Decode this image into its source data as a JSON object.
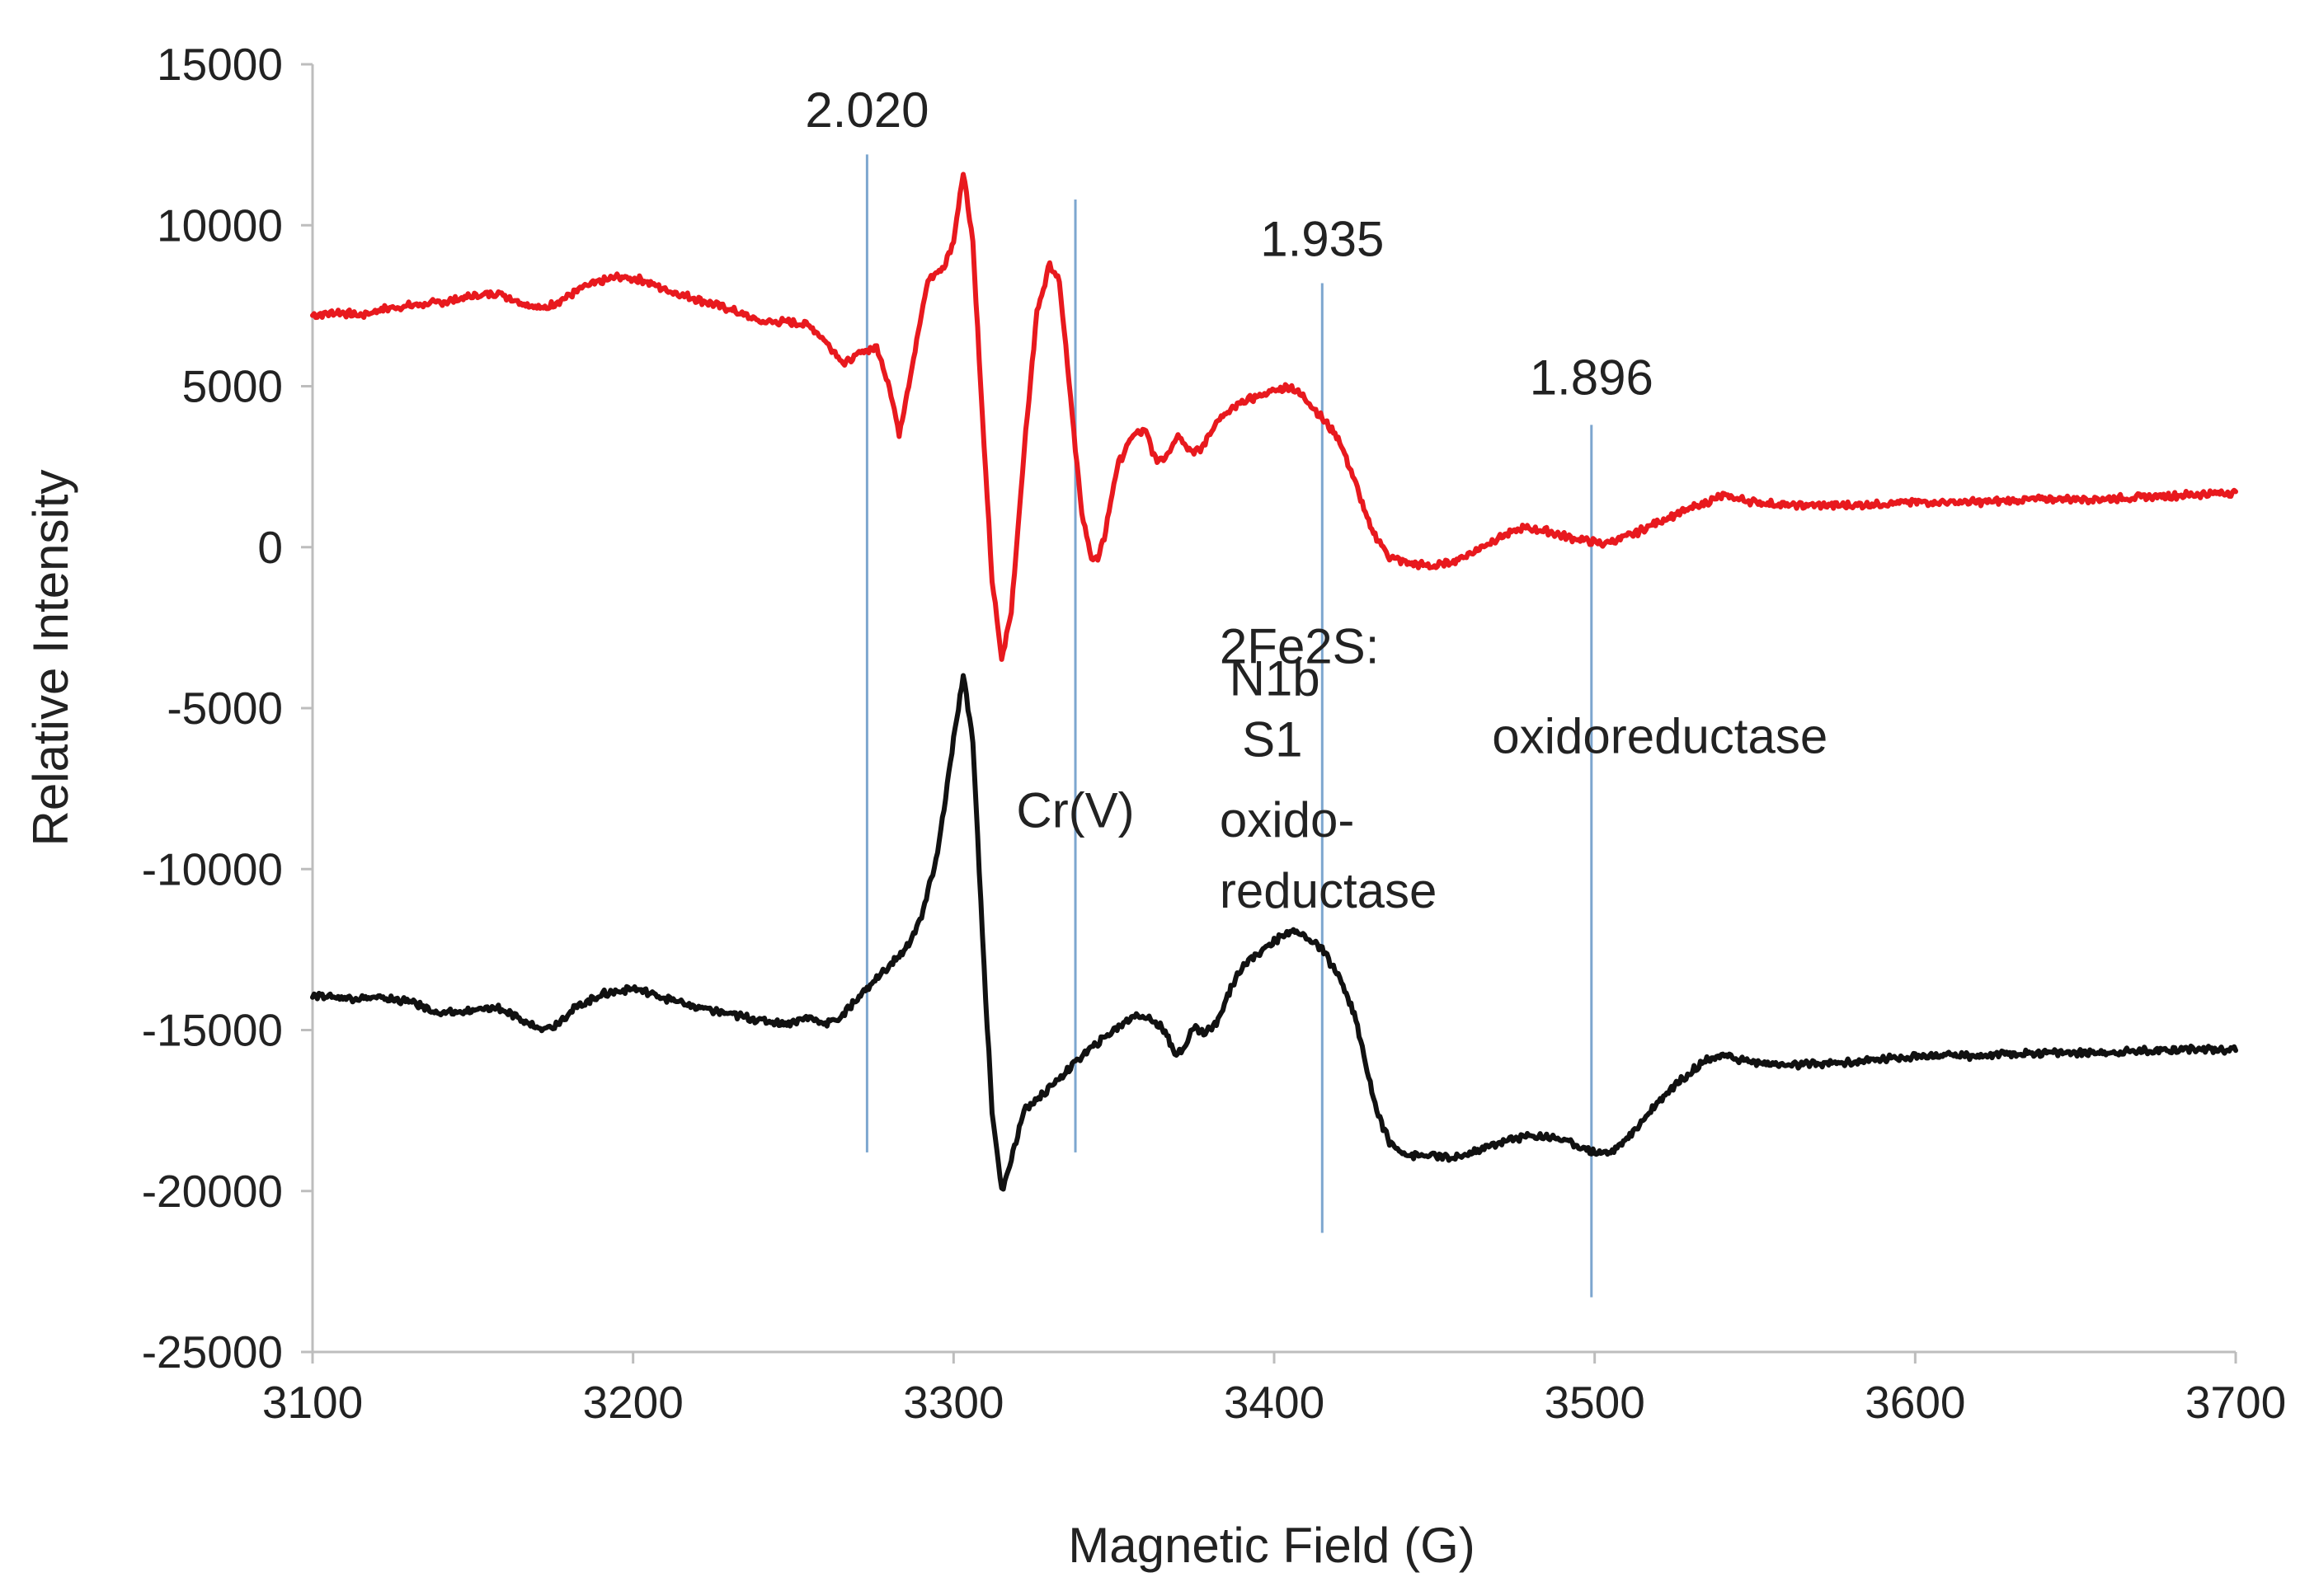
{
  "chart_data": {
    "type": "line",
    "title": "",
    "xlabel": "Magnetic Field (G)",
    "ylabel": "Relative Intensity",
    "xlim": [
      3100,
      3700
    ],
    "ylim": [
      -25000,
      15000
    ],
    "x_ticks": [
      3100,
      3200,
      3300,
      3400,
      3500,
      3600,
      3700
    ],
    "y_ticks": [
      15000,
      10000,
      5000,
      0,
      -5000,
      -10000,
      -15000,
      -20000,
      -25000
    ],
    "grid": false,
    "series": [
      {
        "name": "upper spectrum",
        "color": "#e8191e",
        "x": [
          3100,
          3108,
          3115,
          3122,
          3130,
          3140,
          3150,
          3158,
          3165,
          3172,
          3178,
          3185,
          3195,
          3203,
          3210,
          3220,
          3230,
          3240,
          3248,
          3255,
          3260,
          3266,
          3272,
          3276,
          3280,
          3283,
          3287,
          3292,
          3297,
          3300,
          3303,
          3306,
          3309,
          3312,
          3315,
          3318,
          3322,
          3326,
          3330,
          3333,
          3336,
          3340,
          3343,
          3345,
          3347,
          3351,
          3356,
          3360,
          3363,
          3366,
          3370,
          3374,
          3377,
          3382,
          3390,
          3398,
          3405,
          3410,
          3415,
          3420,
          3425,
          3430,
          3436,
          3442,
          3450,
          3457,
          3463,
          3470,
          3478,
          3485,
          3492,
          3498,
          3502,
          3506,
          3512,
          3520,
          3530,
          3540,
          3550,
          3560,
          3580,
          3600,
          3620,
          3640,
          3660,
          3680,
          3700
        ],
        "y": [
          7200,
          7300,
          7200,
          7400,
          7500,
          7600,
          7800,
          7900,
          7600,
          7400,
          7700,
          8100,
          8400,
          8300,
          8000,
          7700,
          7400,
          7000,
          7000,
          6900,
          6400,
          5700,
          6100,
          6200,
          5000,
          3500,
          5600,
          8300,
          8700,
          9500,
          11700,
          9500,
          4000,
          -1000,
          -3500,
          -2000,
          3000,
          7300,
          8800,
          8300,
          5200,
          1000,
          -300,
          -400,
          300,
          2500,
          3500,
          3600,
          2700,
          2800,
          3500,
          3000,
          3000,
          3900,
          4500,
          4800,
          5000,
          4600,
          4000,
          3400,
          2100,
          600,
          -300,
          -500,
          -600,
          -400,
          -100,
          300,
          600,
          500,
          300,
          200,
          100,
          200,
          400,
          800,
          1200,
          1600,
          1400,
          1300,
          1300,
          1400,
          1400,
          1500,
          1500,
          1600,
          1700
        ]
      },
      {
        "name": "lower spectrum",
        "color": "#111111",
        "x": [
          3100,
          3110,
          3120,
          3130,
          3140,
          3150,
          3158,
          3165,
          3170,
          3175,
          3182,
          3190,
          3200,
          3210,
          3220,
          3230,
          3240,
          3248,
          3255,
          3260,
          3265,
          3270,
          3275,
          3280,
          3285,
          3290,
          3295,
          3300,
          3303,
          3306,
          3308,
          3310,
          3312,
          3315,
          3318,
          3322,
          3330,
          3340,
          3350,
          3357,
          3362,
          3366,
          3369,
          3372,
          3375,
          3378,
          3382,
          3386,
          3390,
          3398,
          3405,
          3410,
          3415,
          3420,
          3425,
          3428,
          3432,
          3436,
          3442,
          3450,
          3456,
          3462,
          3470,
          3478,
          3485,
          3490,
          3495,
          3500,
          3505,
          3510,
          3515,
          3520,
          3525,
          3530,
          3535,
          3540,
          3550,
          3560,
          3580,
          3600,
          3620,
          3640,
          3660,
          3680,
          3700
        ],
        "y": [
          -13900,
          -14000,
          -14000,
          -14100,
          -14500,
          -14400,
          -14300,
          -14700,
          -14900,
          -14900,
          -14300,
          -13900,
          -13700,
          -14000,
          -14300,
          -14500,
          -14700,
          -14800,
          -14600,
          -14800,
          -14600,
          -14000,
          -13500,
          -13000,
          -12500,
          -11500,
          -9500,
          -6000,
          -4000,
          -6000,
          -10000,
          -14000,
          -17500,
          -20000,
          -19000,
          -17500,
          -16800,
          -15800,
          -15000,
          -14500,
          -14700,
          -15000,
          -15800,
          -15500,
          -14900,
          -15100,
          -14800,
          -13800,
          -13000,
          -12400,
          -11900,
          -12100,
          -12500,
          -13300,
          -14500,
          -15800,
          -17500,
          -18500,
          -18900,
          -18900,
          -19000,
          -18800,
          -18500,
          -18300,
          -18300,
          -18400,
          -18600,
          -18800,
          -18800,
          -18400,
          -17800,
          -17200,
          -16700,
          -16300,
          -15900,
          -15800,
          -16000,
          -16100,
          -16000,
          -15800,
          -15800,
          -15700,
          -15700,
          -15600,
          -15600
        ]
      }
    ],
    "reference_lines": [
      {
        "x": 3273,
        "y_top": 12200,
        "y_bottom": -18800,
        "color": "#7da6cf"
      },
      {
        "x": 3338,
        "y_top": 10800,
        "y_bottom": -18800,
        "color": "#7da6cf"
      },
      {
        "x": 3415,
        "y_top": 8200,
        "y_bottom": -21300,
        "color": "#7da6cf"
      },
      {
        "x": 3499,
        "y_top": 3800,
        "y_bottom": -23300,
        "color": "#7da6cf"
      }
    ],
    "annotations": [
      {
        "text": "2.020",
        "x": 3273,
        "y": 13050,
        "anchor": "middle"
      },
      {
        "text": "1.935",
        "x": 3415,
        "y": 9050,
        "anchor": "middle"
      },
      {
        "text": "1.896",
        "x": 3499,
        "y": 4750,
        "anchor": "middle"
      },
      {
        "text": "Cr(V)",
        "x": 3338,
        "y": -8700,
        "anchor": "middle"
      },
      {
        "text": "2Fe2S:",
        "x": 3383,
        "y": -3600,
        "anchor": "start"
      },
      {
        "text": "N1b",
        "x": 3386,
        "y": -4600,
        "anchor": "start"
      },
      {
        "text": "S1",
        "x": 3390,
        "y": -6500,
        "anchor": "start"
      },
      {
        "text": "oxido-",
        "x": 3383,
        "y": -9000,
        "anchor": "start"
      },
      {
        "text": "reductase",
        "x": 3383,
        "y": -11200,
        "anchor": "start"
      },
      {
        "text": "oxidoreductase",
        "x": 3468,
        "y": -6400,
        "anchor": "start"
      }
    ]
  }
}
